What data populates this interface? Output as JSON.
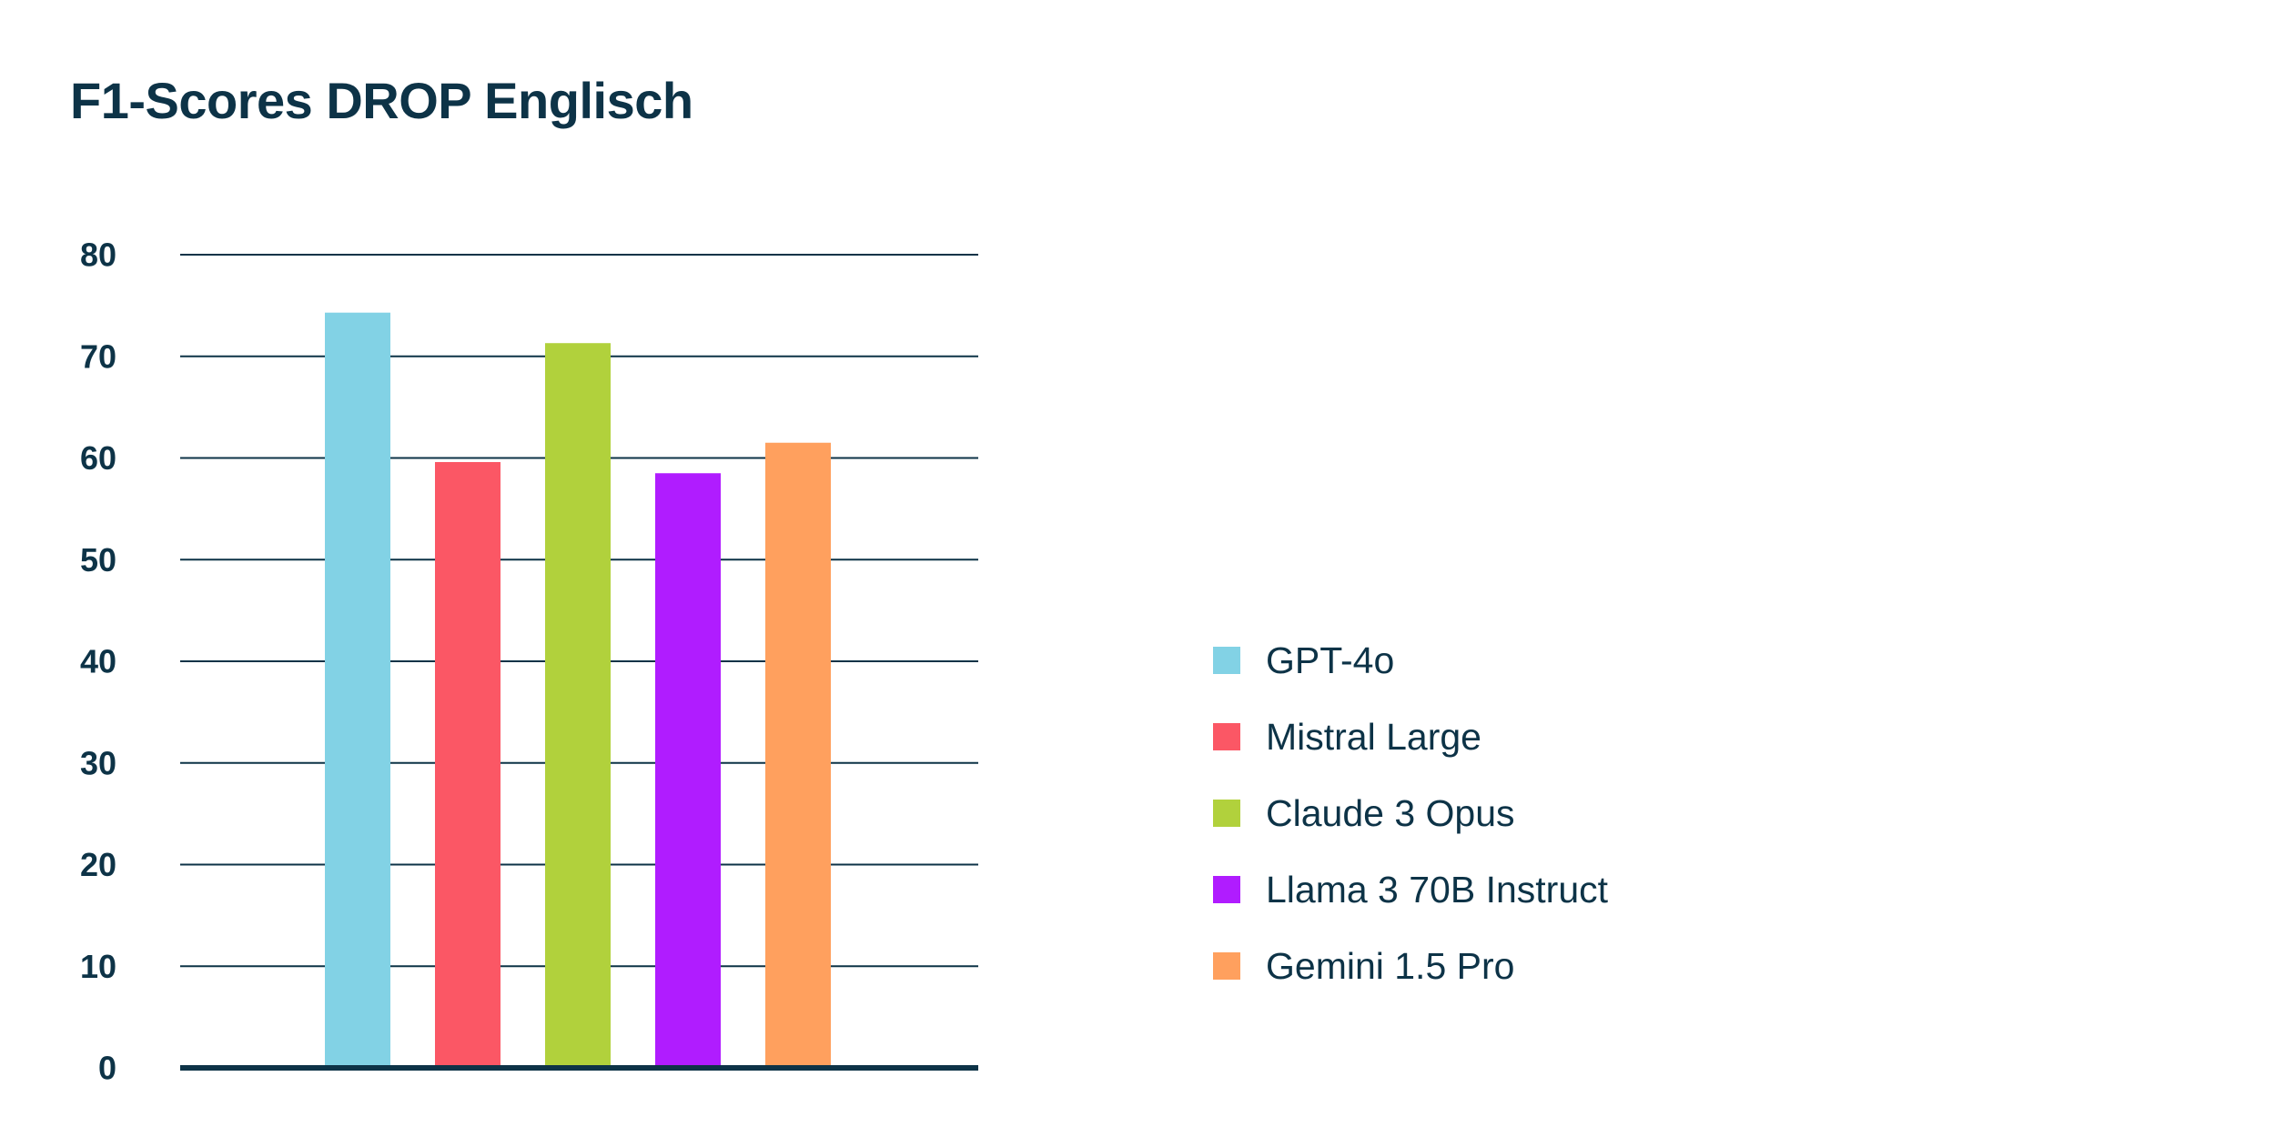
{
  "chart_data": {
    "type": "bar",
    "title": "F1-Scores DROP Englisch",
    "xlabel": "",
    "ylabel": "",
    "ylim": [
      0,
      80
    ],
    "yticks": [
      0,
      10,
      20,
      30,
      40,
      50,
      60,
      70,
      80
    ],
    "grid": true,
    "legend_position": "right",
    "series": [
      {
        "name": "GPT-4o",
        "value": 74.3,
        "color": "#82d2e5"
      },
      {
        "name": "Mistral Large",
        "value": 59.6,
        "color": "#fb5765"
      },
      {
        "name": "Claude 3 Opus",
        "value": 71.3,
        "color": "#b1d13c"
      },
      {
        "name": "Llama 3 70B Instruct",
        "value": 58.5,
        "color": "#b01cff"
      },
      {
        "name": "Gemini 1.5 Pro",
        "value": 61.5,
        "color": "#ffa05e"
      }
    ],
    "colors": {
      "text": "#0d3347",
      "grid": "#0d3347",
      "axis": "#0d3347"
    }
  }
}
